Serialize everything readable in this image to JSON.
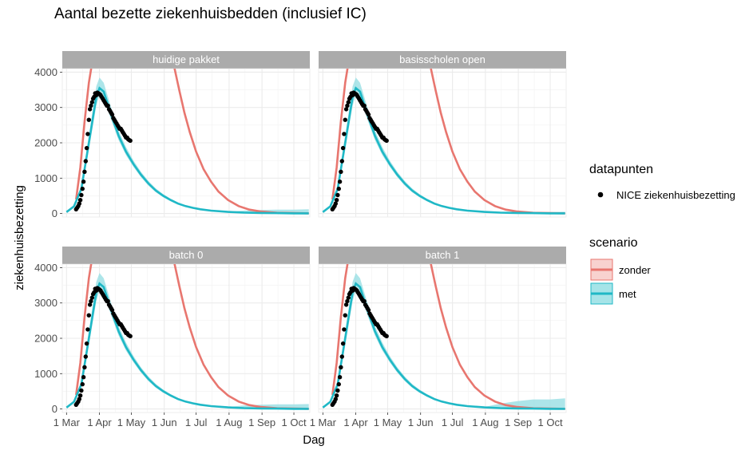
{
  "chart_data": {
    "type": "line",
    "title": "Aantal bezette ziekenhuisbedden (inclusief IC)",
    "xlabel": "Dag",
    "ylabel": "ziekenhuisbezetting",
    "x_ticks": [
      "1 Mar",
      "1 Apr",
      "1 May",
      "1 Jun",
      "1 Jul",
      "1 Aug",
      "1 Sep",
      "1 Oct"
    ],
    "y_ticks": [
      0,
      1000,
      2000,
      3000,
      4000
    ],
    "ylim": [
      -100,
      4100
    ],
    "xlim": [
      "2020-02-26",
      "2020-10-16"
    ],
    "grid": true,
    "legend_position": "right",
    "colors": {
      "zonder": "#e8766f",
      "met": "#1fb8c6",
      "met_band": "#9fe0e5",
      "datapunten": "#000000",
      "strip": "#ababab",
      "panel_bg": "#ffffff",
      "grid": "#ebebeb"
    },
    "facets": [
      "huidige pakket",
      "basisscholen open",
      "batch 0",
      "batch 1"
    ],
    "legend": {
      "datapunten_title": "datapunten",
      "datapunten_label": "NICE ziekenhuisbezetting",
      "scenario_title": "scenario",
      "scenario_labels": [
        "zonder",
        "met"
      ]
    },
    "series": [
      {
        "name": "NICE ziekenhuisbezetting",
        "kind": "points",
        "x": [
          "2020-03-10",
          "2020-03-11",
          "2020-03-12",
          "2020-03-13",
          "2020-03-14",
          "2020-03-15",
          "2020-03-16",
          "2020-03-17",
          "2020-03-18",
          "2020-03-19",
          "2020-03-20",
          "2020-03-21",
          "2020-03-22",
          "2020-03-23",
          "2020-03-24",
          "2020-03-25",
          "2020-03-26",
          "2020-03-27",
          "2020-03-28",
          "2020-03-29",
          "2020-03-30",
          "2020-03-31",
          "2020-04-01",
          "2020-04-02",
          "2020-04-03",
          "2020-04-04",
          "2020-04-05",
          "2020-04-06",
          "2020-04-07",
          "2020-04-08",
          "2020-04-09",
          "2020-04-10",
          "2020-04-11",
          "2020-04-12",
          "2020-04-13",
          "2020-04-14",
          "2020-04-15",
          "2020-04-16",
          "2020-04-17",
          "2020-04-18",
          "2020-04-19",
          "2020-04-20",
          "2020-04-21",
          "2020-04-22",
          "2020-04-23",
          "2020-04-24",
          "2020-04-25",
          "2020-04-26",
          "2020-04-27",
          "2020-04-28",
          "2020-04-29",
          "2020-04-30"
        ],
        "values": [
          120,
          160,
          210,
          280,
          380,
          520,
          700,
          900,
          1180,
          1480,
          1850,
          2250,
          2650,
          2950,
          3050,
          3150,
          3250,
          3300,
          3400,
          3350,
          3420,
          3400,
          3380,
          3350,
          3300,
          3250,
          3200,
          3150,
          3100,
          3050,
          3050,
          2950,
          2900,
          2850,
          2800,
          2700,
          2650,
          2600,
          2550,
          2500,
          2450,
          2400,
          2400,
          2350,
          2300,
          2250,
          2200,
          2150,
          2150,
          2100,
          2080,
          2060
        ]
      },
      {
        "name": "met",
        "kind": "line",
        "x": [
          "2020-03-01",
          "2020-03-08",
          "2020-03-15",
          "2020-03-22",
          "2020-03-29",
          "2020-04-01",
          "2020-04-05",
          "2020-04-12",
          "2020-04-19",
          "2020-04-26",
          "2020-05-03",
          "2020-05-10",
          "2020-05-17",
          "2020-05-24",
          "2020-05-31",
          "2020-06-07",
          "2020-06-14",
          "2020-06-21",
          "2020-06-28",
          "2020-07-05",
          "2020-07-15",
          "2020-07-31",
          "2020-08-15",
          "2020-08-31",
          "2020-09-15",
          "2020-10-01",
          "2020-10-15"
        ],
        "values": [
          40,
          200,
          700,
          2000,
          3300,
          3550,
          3450,
          2800,
          2200,
          1750,
          1400,
          1100,
          850,
          650,
          500,
          380,
          280,
          210,
          160,
          120,
          80,
          45,
          25,
          15,
          10,
          5,
          3
        ],
        "band_lower": [
          30,
          170,
          600,
          1800,
          3050,
          3350,
          3250,
          2650,
          2080,
          1650,
          1320,
          1030,
          790,
          600,
          460,
          350,
          255,
          190,
          145,
          108,
          70,
          38,
          20,
          10,
          7,
          3,
          2
        ],
        "band_upper": [
          50,
          230,
          800,
          2200,
          3600,
          3850,
          3700,
          3000,
          2350,
          1880,
          1500,
          1180,
          920,
          710,
          550,
          420,
          310,
          235,
          180,
          135,
          92,
          55,
          32,
          22,
          16,
          10,
          6
        ],
        "band_upper_tail": {
          "huidige pakket": [
            80,
            100,
            110,
            120
          ],
          "basisscholen open": [
            35,
            40,
            45,
            50
          ],
          "batch 0": [
            100,
            120,
            130,
            140
          ],
          "batch 1": [
            150,
            220,
            270,
            300
          ]
        },
        "band_tail_x": [
          "2020-08-15",
          "2020-08-31",
          "2020-09-15",
          "2020-10-15"
        ]
      },
      {
        "name": "zonder",
        "kind": "line",
        "x": [
          "2020-03-10",
          "2020-03-14",
          "2020-03-18",
          "2020-03-22",
          "2020-03-28",
          "2020-06-05",
          "2020-06-10",
          "2020-06-15",
          "2020-06-20",
          "2020-06-25",
          "2020-07-01",
          "2020-07-08",
          "2020-07-15",
          "2020-07-22",
          "2020-07-31",
          "2020-08-10",
          "2020-08-20",
          "2020-08-31",
          "2020-09-15",
          "2020-10-15"
        ],
        "values": [
          400,
          1300,
          2600,
          3700,
          4800,
          4800,
          4200,
          3500,
          2850,
          2300,
          1750,
          1250,
          900,
          620,
          380,
          210,
          110,
          55,
          20,
          5
        ]
      }
    ]
  }
}
